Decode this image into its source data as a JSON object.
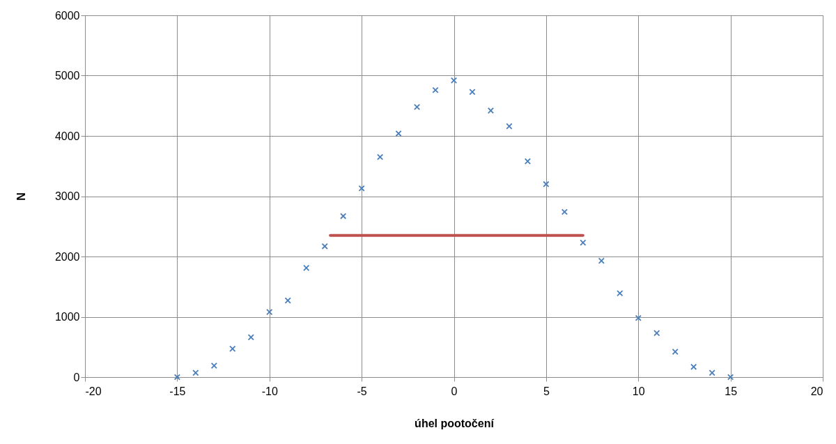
{
  "chart_data": {
    "type": "scatter",
    "xlabel": "úhel pootočení",
    "ylabel": "N",
    "xlim": [
      -20,
      20
    ],
    "xticks": [
      -20,
      -15,
      -10,
      -5,
      0,
      5,
      10,
      15,
      20
    ],
    "ylim": [
      0,
      6000
    ],
    "yticks": [
      0,
      1000,
      2000,
      3000,
      4000,
      5000,
      6000
    ],
    "grid": true,
    "series": [
      {
        "marker": "cross",
        "color": "#4a7ebb",
        "x": [
          -15,
          -14,
          -13,
          -12,
          -11,
          -10,
          -9,
          -8,
          -7,
          -6,
          -5,
          -4,
          -3,
          -2,
          -1,
          0,
          1,
          2,
          3,
          4,
          5,
          6,
          7,
          8,
          9,
          10,
          11,
          12,
          13,
          14,
          15
        ],
        "values": [
          0,
          70,
          190,
          470,
          660,
          1080,
          1270,
          1810,
          2170,
          2670,
          3130,
          3650,
          4040,
          4480,
          4760,
          4920,
          4730,
          4420,
          4160,
          3580,
          3200,
          2740,
          2230,
          1930,
          1390,
          980,
          730,
          420,
          170,
          70,
          0
        ]
      },
      {
        "type": "line",
        "color": "#c0504d",
        "x": [
          -6.7,
          7.0
        ],
        "values": [
          2350,
          2350
        ]
      }
    ]
  }
}
